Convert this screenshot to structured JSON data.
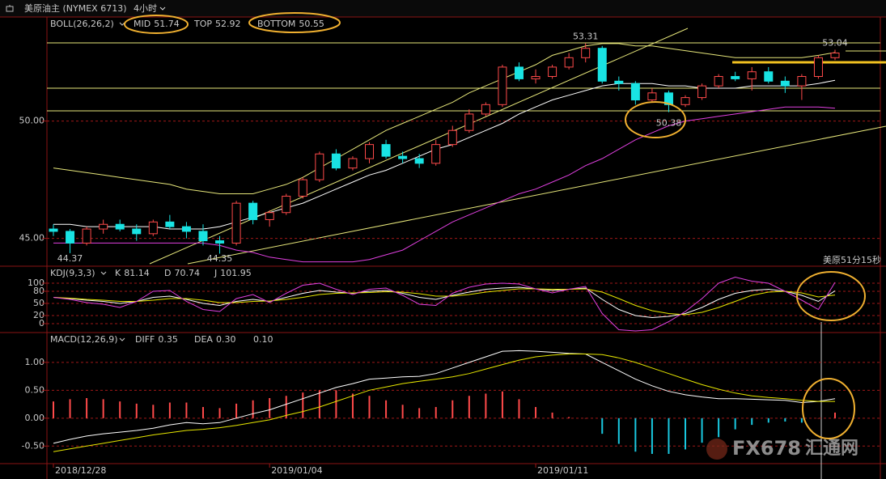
{
  "header": {
    "symbol": "美原油主 (NYMEX 6713)",
    "period": "4小时"
  },
  "countdown": "美原51分15秒",
  "watermark": {
    "brand": "FX678",
    "site": "汇通网"
  },
  "chart_data": [
    {
      "type": "candlestick",
      "title": "BOLL(26,26,2)",
      "categories": [
        "2018/12/28",
        null,
        null,
        null,
        null,
        null,
        null,
        null,
        null,
        null,
        null,
        null,
        null,
        "2019/01/04",
        null,
        null,
        null,
        null,
        null,
        null,
        null,
        null,
        null,
        null,
        null,
        null,
        null,
        null,
        null,
        "2019/01/11",
        null,
        null,
        null,
        null,
        null,
        null,
        null,
        null,
        null,
        null,
        null,
        null,
        null,
        null,
        null,
        null,
        null,
        null
      ],
      "up_color": "#ff4a4a",
      "down_color": "#19e3e3",
      "candles": [
        [
          45.4,
          45.6,
          45.1,
          45.3
        ],
        [
          45.3,
          45.4,
          44.37,
          44.8
        ],
        [
          44.8,
          45.5,
          44.7,
          45.4
        ],
        [
          45.4,
          45.8,
          45.2,
          45.6
        ],
        [
          45.6,
          45.8,
          45.3,
          45.4
        ],
        [
          45.4,
          45.6,
          44.9,
          45.2
        ],
        [
          45.2,
          45.8,
          45.1,
          45.7
        ],
        [
          45.7,
          46.0,
          45.4,
          45.5
        ],
        [
          45.5,
          45.7,
          45.0,
          45.3
        ],
        [
          45.3,
          45.6,
          44.7,
          44.9
        ],
        [
          44.9,
          45.1,
          44.35,
          44.8
        ],
        [
          44.8,
          46.6,
          44.7,
          46.5
        ],
        [
          46.5,
          46.6,
          45.6,
          45.8
        ],
        [
          45.8,
          46.2,
          45.5,
          46.1
        ],
        [
          46.1,
          46.9,
          46.0,
          46.8
        ],
        [
          46.8,
          47.6,
          46.7,
          47.5
        ],
        [
          47.5,
          48.7,
          47.4,
          48.6
        ],
        [
          48.6,
          48.8,
          47.9,
          48.0
        ],
        [
          48.0,
          48.5,
          47.9,
          48.4
        ],
        [
          48.4,
          49.1,
          48.2,
          49.0
        ],
        [
          49.0,
          49.2,
          48.4,
          48.5
        ],
        [
          48.5,
          48.7,
          48.2,
          48.4
        ],
        [
          48.4,
          48.6,
          48.0,
          48.2
        ],
        [
          48.2,
          49.2,
          48.1,
          49.0
        ],
        [
          49.0,
          49.8,
          48.9,
          49.6
        ],
        [
          49.6,
          50.5,
          49.5,
          50.3
        ],
        [
          50.3,
          50.8,
          50.2,
          50.7
        ],
        [
          50.7,
          52.4,
          50.6,
          52.3
        ],
        [
          52.3,
          52.5,
          51.7,
          51.8
        ],
        [
          51.8,
          52.2,
          51.6,
          51.9
        ],
        [
          51.9,
          52.4,
          51.8,
          52.3
        ],
        [
          52.3,
          52.9,
          52.2,
          52.7
        ],
        [
          52.7,
          53.31,
          52.5,
          53.1
        ],
        [
          53.1,
          53.2,
          51.6,
          51.7
        ],
        [
          51.7,
          51.9,
          51.3,
          51.6
        ],
        [
          51.6,
          51.7,
          50.7,
          50.9
        ],
        [
          50.9,
          51.4,
          50.8,
          51.2
        ],
        [
          51.2,
          51.3,
          50.38,
          50.7
        ],
        [
          50.7,
          51.1,
          50.6,
          51.0
        ],
        [
          51.0,
          51.6,
          50.9,
          51.5
        ],
        [
          51.5,
          52.0,
          51.4,
          51.9
        ],
        [
          51.9,
          52.1,
          51.7,
          51.8
        ],
        [
          51.8,
          52.3,
          51.3,
          52.1
        ],
        [
          52.1,
          52.3,
          51.6,
          51.7
        ],
        [
          51.7,
          51.9,
          51.2,
          51.5
        ],
        [
          51.5,
          52.0,
          50.9,
          51.9
        ],
        [
          51.9,
          52.8,
          51.8,
          52.7
        ],
        [
          52.7,
          53.04,
          52.6,
          52.9
        ]
      ],
      "series": [
        {
          "name": "MID",
          "color": "#ffffff",
          "values": [
            45.6,
            45.6,
            45.5,
            45.5,
            45.5,
            45.5,
            45.5,
            45.4,
            45.4,
            45.4,
            45.5,
            45.7,
            45.9,
            46.1,
            46.3,
            46.5,
            46.8,
            47.1,
            47.4,
            47.7,
            47.9,
            48.2,
            48.5,
            48.8,
            49.0,
            49.3,
            49.6,
            49.9,
            50.3,
            50.6,
            50.9,
            51.1,
            51.3,
            51.5,
            51.6,
            51.6,
            51.6,
            51.5,
            51.5,
            51.4,
            51.4,
            51.4,
            51.5,
            51.5,
            51.5,
            51.5,
            51.6,
            51.74
          ]
        },
        {
          "name": "TOP",
          "color": "#e6e67a",
          "values": [
            48.0,
            47.9,
            47.8,
            47.7,
            47.6,
            47.5,
            47.4,
            47.3,
            47.1,
            47.0,
            46.9,
            46.9,
            46.9,
            47.1,
            47.3,
            47.6,
            48.0,
            48.4,
            48.8,
            49.2,
            49.6,
            49.9,
            50.2,
            50.5,
            50.8,
            51.2,
            51.5,
            51.8,
            52.1,
            52.4,
            52.8,
            53.0,
            53.2,
            53.3,
            53.3,
            53.2,
            53.2,
            53.1,
            53.0,
            52.9,
            52.8,
            52.7,
            52.7,
            52.7,
            52.7,
            52.7,
            52.8,
            52.92
          ]
        },
        {
          "name": "BOTTOM",
          "color": "#e040e0",
          "values": [
            44.8,
            44.8,
            44.8,
            44.8,
            44.8,
            44.8,
            44.8,
            44.8,
            44.8,
            44.8,
            44.7,
            44.5,
            44.4,
            44.2,
            44.1,
            44.0,
            44.0,
            44.0,
            44.0,
            44.1,
            44.3,
            44.5,
            44.9,
            45.3,
            45.7,
            46.0,
            46.3,
            46.6,
            46.9,
            47.1,
            47.4,
            47.7,
            48.1,
            48.4,
            48.8,
            49.2,
            49.5,
            49.8,
            50.0,
            50.1,
            50.2,
            50.3,
            50.4,
            50.5,
            50.6,
            50.6,
            50.6,
            50.55
          ]
        }
      ],
      "ylim": [
        43.85,
        54.4
      ],
      "yticks": [
        {
          "value": 45,
          "label": "45.00"
        },
        {
          "value": 50,
          "label": "50.00"
        }
      ],
      "grid": true,
      "grid_color": "#a01818"
    },
    {
      "type": "line",
      "title": "KDJ(9,3,3)",
      "series": [
        {
          "name": "K",
          "color": "#ffffff",
          "values": [
            65,
            62,
            58,
            55,
            50,
            55,
            65,
            68,
            60,
            50,
            45,
            55,
            60,
            55,
            65,
            75,
            82,
            78,
            75,
            80,
            82,
            75,
            65,
            60,
            70,
            78,
            85,
            88,
            90,
            86,
            82,
            85,
            88,
            60,
            35,
            20,
            15,
            18,
            25,
            40,
            60,
            75,
            82,
            85,
            80,
            70,
            55,
            81.14
          ]
        },
        {
          "name": "D",
          "color": "#e6e600",
          "values": [
            65,
            63,
            60,
            58,
            55,
            55,
            58,
            62,
            62,
            58,
            52,
            52,
            55,
            56,
            60,
            65,
            72,
            75,
            76,
            77,
            79,
            78,
            74,
            68,
            68,
            72,
            78,
            82,
            86,
            86,
            85,
            85,
            86,
            78,
            62,
            45,
            32,
            25,
            22,
            28,
            40,
            55,
            70,
            78,
            80,
            76,
            66,
            70.74
          ]
        },
        {
          "name": "J",
          "color": "#e040e0",
          "values": [
            65,
            60,
            52,
            48,
            40,
            55,
            80,
            82,
            55,
            35,
            30,
            62,
            72,
            52,
            75,
            95,
            100,
            85,
            72,
            85,
            88,
            70,
            48,
            45,
            75,
            90,
            98,
            100,
            98,
            86,
            76,
            85,
            92,
            25,
            -15,
            -18,
            -15,
            5,
            30,
            62,
            100,
            115,
            105,
            100,
            80,
            58,
            35,
            101.95
          ]
        }
      ],
      "ylim": [
        -20,
        140
      ],
      "yticks": [
        0,
        20,
        50,
        80,
        100
      ],
      "grid": true,
      "grid_color": "#a01818"
    },
    {
      "type": "line",
      "title": "MACD(12,26,9)",
      "series": [
        {
          "name": "DIFF",
          "color": "#ffffff",
          "values": [
            -0.45,
            -0.38,
            -0.32,
            -0.28,
            -0.25,
            -0.22,
            -0.18,
            -0.12,
            -0.08,
            -0.1,
            -0.08,
            0.0,
            0.08,
            0.15,
            0.25,
            0.35,
            0.45,
            0.55,
            0.62,
            0.7,
            0.72,
            0.74,
            0.75,
            0.8,
            0.9,
            1.0,
            1.1,
            1.2,
            1.21,
            1.2,
            1.18,
            1.16,
            1.15,
            1.0,
            0.85,
            0.7,
            0.58,
            0.48,
            0.42,
            0.38,
            0.35,
            0.35,
            0.34,
            0.33,
            0.32,
            0.28,
            0.3,
            0.35
          ]
        },
        {
          "name": "DEA",
          "color": "#e6e600",
          "last_label": "0.30",
          "values": [
            -0.6,
            -0.55,
            -0.5,
            -0.45,
            -0.4,
            -0.35,
            -0.3,
            -0.26,
            -0.22,
            -0.2,
            -0.17,
            -0.13,
            -0.08,
            -0.03,
            0.05,
            0.12,
            0.2,
            0.3,
            0.4,
            0.5,
            0.56,
            0.62,
            0.66,
            0.7,
            0.74,
            0.8,
            0.88,
            0.96,
            1.04,
            1.1,
            1.13,
            1.15,
            1.15,
            1.14,
            1.08,
            1.0,
            0.9,
            0.8,
            0.7,
            0.6,
            0.52,
            0.45,
            0.4,
            0.37,
            0.35,
            0.32,
            0.3,
            0.3
          ]
        }
      ],
      "bars": {
        "up_color": "#ff4a4a",
        "down_color": "#19c8e0",
        "last_label": "0.10",
        "values": [
          0.3,
          0.34,
          0.36,
          0.34,
          0.3,
          0.26,
          0.24,
          0.28,
          0.28,
          0.2,
          0.18,
          0.26,
          0.32,
          0.36,
          0.4,
          0.46,
          0.5,
          0.5,
          0.44,
          0.4,
          0.32,
          0.24,
          0.18,
          0.2,
          0.32,
          0.4,
          0.44,
          0.48,
          0.34,
          0.2,
          0.1,
          0.02,
          0,
          -0.28,
          -0.46,
          -0.6,
          -0.64,
          -0.64,
          -0.56,
          -0.44,
          -0.34,
          -0.2,
          -0.12,
          -0.08,
          -0.06,
          -0.08,
          0,
          0.1
        ]
      },
      "ylim": [
        -0.8,
        1.52
      ],
      "yticks": [
        {
          "value": -0.5,
          "label": "-0.50"
        },
        {
          "value": 0,
          "label": "0.00"
        },
        {
          "value": 0.5,
          "label": "0.50"
        },
        {
          "value": 1,
          "label": "1.00"
        }
      ],
      "grid": true,
      "grid_color": "#a01818"
    }
  ]
}
